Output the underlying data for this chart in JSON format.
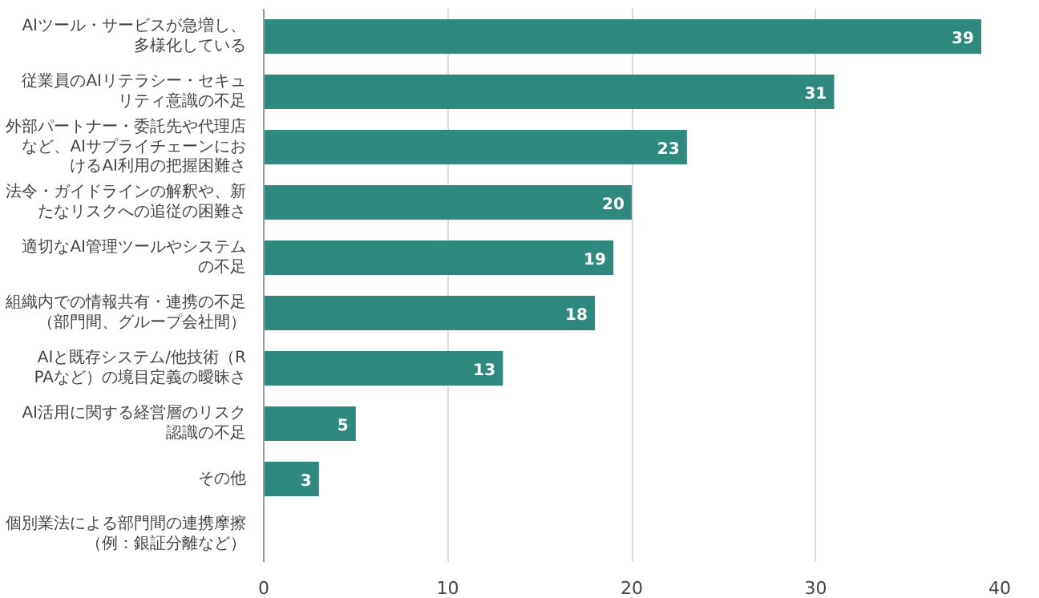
{
  "chart_data": {
    "type": "bar",
    "orientation": "horizontal",
    "categories": [
      "AIツール・サービスが急増し、多様化している",
      "従業員のAIリテラシー・セキュリティ意識の不足",
      "外部パートナー・委託先や代理店など、AIサプライチェーンにおけるAI利用の把握困難さ",
      "法令・ガイドラインの解釈や、新たなリスクへの追従の困難さ",
      "適切なAI管理ツールやシステムの不足",
      "組織内での情報共有・連携の不足（部門間、グループ会社間）",
      "AIと既存システム/他技術（RPAなど）の境目定義の曖昧さ",
      "AI活用に関する経営層のリスク認識の不足",
      "その他",
      "個別業法による部門間の連携摩擦（例：銀証分離など）"
    ],
    "values": [
      39,
      31,
      23,
      20,
      19,
      18,
      13,
      5,
      3,
      0
    ],
    "value_labels": [
      "39",
      "31",
      "23",
      "20",
      "19",
      "18",
      "13",
      "5",
      "3",
      null
    ],
    "color": "#2e8a7f",
    "xlim": [
      0,
      40
    ],
    "xticks": [
      0,
      10,
      20,
      30,
      40
    ],
    "grid": "x"
  }
}
